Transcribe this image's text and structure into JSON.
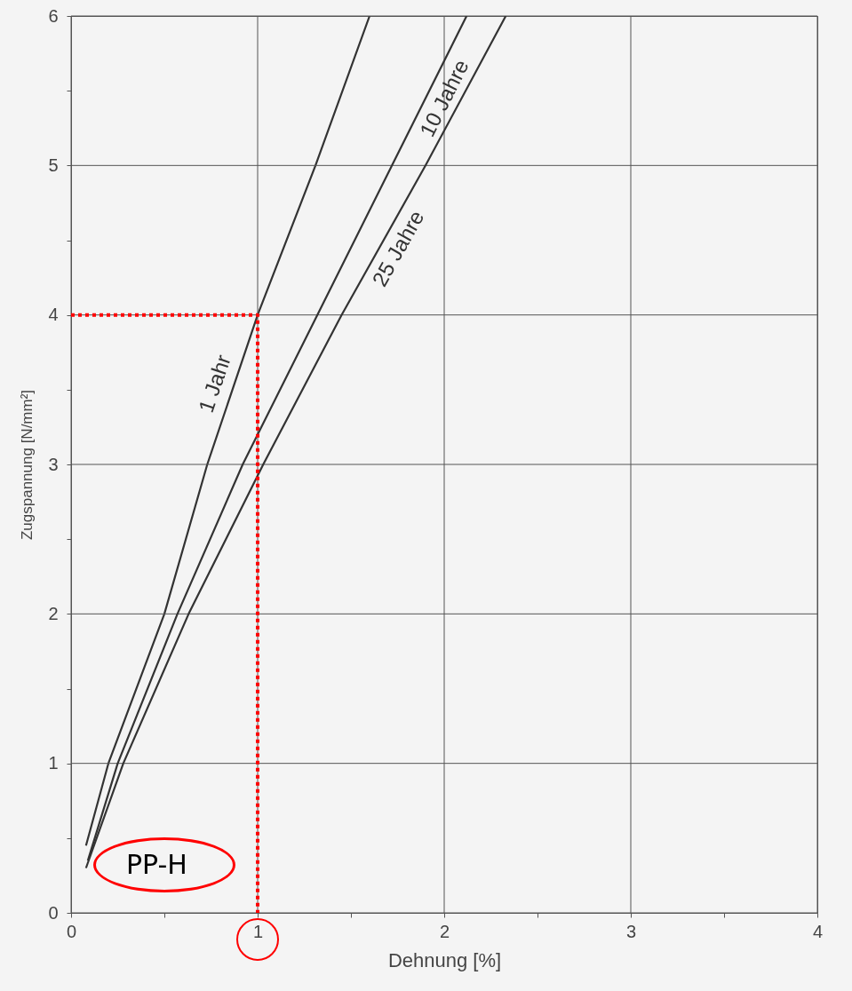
{
  "chart_data": {
    "type": "line",
    "xlabel": "Dehnung [%]",
    "ylabel": "Zugspannung [N/mm²]",
    "xlim": [
      0,
      4
    ],
    "xticks": [
      0,
      {
        "value": 0.5,
        "label": null
      },
      1,
      {
        "value": 1.5,
        "label": null
      },
      2,
      {
        "value": 2.5,
        "label": null
      },
      3,
      {
        "value": 3.5,
        "label": null
      },
      4
    ],
    "ylim": [
      0,
      6
    ],
    "yticks": [
      0,
      {
        "value": 0.5,
        "label": null
      },
      1,
      {
        "value": 1.5,
        "label": null
      },
      2,
      {
        "value": 2.5,
        "label": null
      },
      3,
      {
        "value": 3.5,
        "label": null
      },
      4,
      {
        "value": 4.5,
        "label": null
      },
      5,
      {
        "value": 5.5,
        "label": null
      },
      6
    ],
    "grid": true,
    "annotations": [
      "PP-H"
    ],
    "series": [
      {
        "name": "1 Jahr",
        "color": "#333333",
        "x": [
          0.08,
          0.2,
          0.5,
          0.73,
          1.0,
          1.31,
          1.6
        ],
        "values": [
          0.45,
          1.0,
          2.0,
          3.0,
          4.0,
          5.0,
          6.0
        ]
      },
      {
        "name": "10 Jahre",
        "color": "#333333",
        "x": [
          0.09,
          0.25,
          0.57,
          0.92,
          1.32,
          1.72,
          2.12
        ],
        "values": [
          0.35,
          1.0,
          2.0,
          3.0,
          4.0,
          5.0,
          6.0
        ]
      },
      {
        "name": "25 Jahre",
        "color": "#333333",
        "x": [
          0.08,
          0.28,
          0.63,
          1.03,
          1.45,
          1.9,
          2.33
        ],
        "values": [
          0.3,
          1.0,
          2.0,
          3.0,
          4.0,
          5.0,
          6.0
        ]
      },
      {
        "color": "#ff0000",
        "line_style": "dotted",
        "x": [
          0,
          1,
          1
        ],
        "values": [
          4,
          4,
          0
        ]
      }
    ]
  }
}
